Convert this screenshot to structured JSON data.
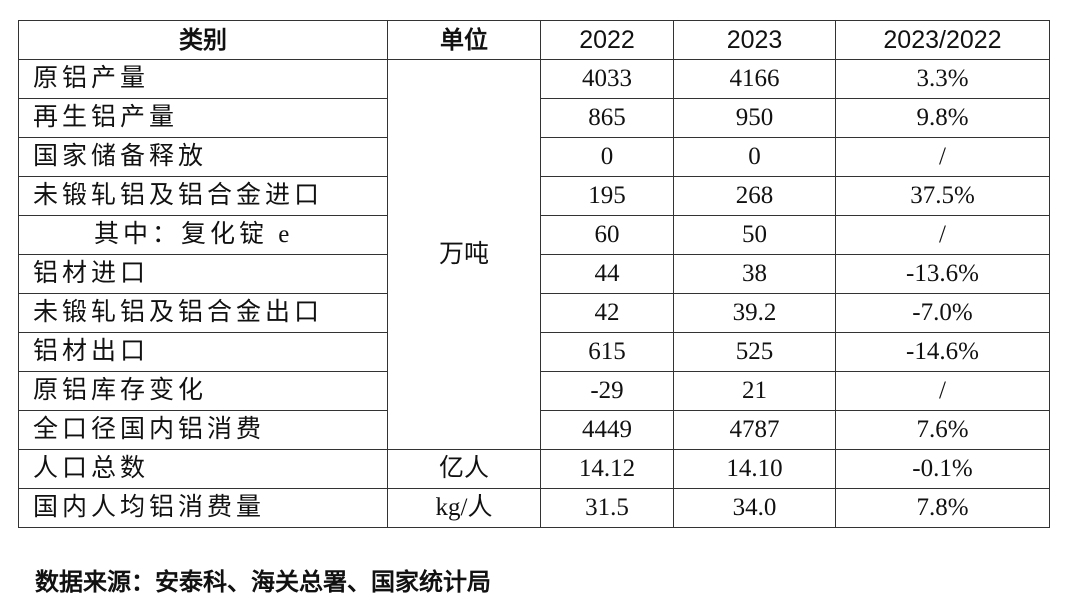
{
  "table": {
    "headers": [
      "类别",
      "单位",
      "2022",
      "2023",
      "2023/2022"
    ],
    "units": {
      "group1": "万吨",
      "population": "亿人",
      "per_capita": "kg/人"
    },
    "rows": [
      {
        "category": "原铝产量",
        "y2022": "4033",
        "y2023": "4166",
        "ratio": "3.3%"
      },
      {
        "category": "再生铝产量",
        "y2022": "865",
        "y2023": "950",
        "ratio": "9.8%"
      },
      {
        "category": "国家储备释放",
        "y2022": "0",
        "y2023": "0",
        "ratio": "/"
      },
      {
        "category": "未锻轧铝及铝合金进口",
        "y2022": "195",
        "y2023": "268",
        "ratio": "37.5%"
      },
      {
        "category": "其中：复化锭 e",
        "y2022": "60",
        "y2023": "50",
        "ratio": "/"
      },
      {
        "category": "铝材进口",
        "y2022": "44",
        "y2023": "38",
        "ratio": "-13.6%"
      },
      {
        "category": "未锻轧铝及铝合金出口",
        "y2022": "42",
        "y2023": "39.2",
        "ratio": "-7.0%"
      },
      {
        "category": "铝材出口",
        "y2022": "615",
        "y2023": "525",
        "ratio": "-14.6%"
      },
      {
        "category": "原铝库存变化",
        "y2022": "-29",
        "y2023": "21",
        "ratio": "/"
      },
      {
        "category": "全口径国内铝消费",
        "y2022": "4449",
        "y2023": "4787",
        "ratio": "7.6%"
      },
      {
        "category": "人口总数",
        "y2022": "14.12",
        "y2023": "14.10",
        "ratio": "-0.1%"
      },
      {
        "category": "国内人均铝消费量",
        "y2022": "31.5",
        "y2023": "34.0",
        "ratio": "7.8%"
      }
    ]
  },
  "footnote": "数据来源：安泰科、海关总署、国家统计局"
}
